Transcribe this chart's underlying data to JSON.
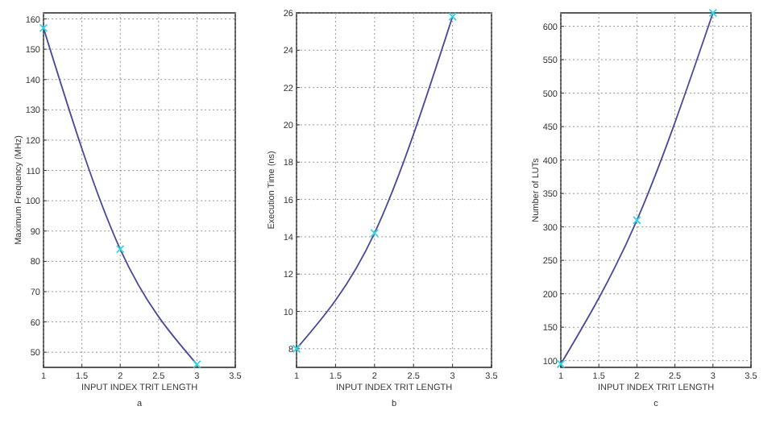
{
  "chart_data": [
    {
      "type": "line",
      "xlabel": "INPUT INDEX TRIT LENGTH",
      "ylabel": "Maximum Frequency (MHz)",
      "annotations": [
        "a"
      ],
      "x": [
        1,
        2,
        3
      ],
      "series": [
        {
          "color": "#4a4a9c",
          "values": [
            157,
            84,
            46
          ]
        }
      ],
      "xlim": [
        1,
        3.5
      ],
      "xticks": [
        1,
        1.5,
        2,
        2.5,
        3,
        3.5
      ],
      "ylim": [
        45,
        162
      ],
      "yticks": [
        50,
        60,
        70,
        80,
        90,
        100,
        110,
        120,
        130,
        140,
        150,
        160
      ],
      "grid": true,
      "marker": "cross",
      "line_style": "solid"
    },
    {
      "type": "line",
      "xlabel": "INPUT INDEX TRIT LENGTH",
      "ylabel": "Execution Time (ns)",
      "annotations": [
        "b"
      ],
      "x": [
        1,
        2,
        3
      ],
      "series": [
        {
          "color": "#4a4a9c",
          "values": [
            8,
            14.2,
            25.8
          ]
        }
      ],
      "xlim": [
        1,
        3.5
      ],
      "xticks": [
        1,
        1.5,
        2,
        2.5,
        3,
        3.5
      ],
      "ylim": [
        7,
        26
      ],
      "yticks": [
        8,
        10,
        12,
        14,
        16,
        18,
        20,
        22,
        24,
        26
      ],
      "grid": true,
      "marker": "cross",
      "line_style": "solid"
    },
    {
      "type": "line",
      "xlabel": "INPUT INDEX TRIT LENGTH",
      "ylabel": "Number of LUTs",
      "annotations": [
        "c"
      ],
      "x": [
        1,
        2,
        3
      ],
      "series": [
        {
          "color": "#4a4a9c",
          "values": [
            95,
            310,
            620
          ]
        }
      ],
      "xlim": [
        1,
        3.5
      ],
      "xticks": [
        1,
        1.5,
        2,
        2.5,
        3,
        3.5
      ],
      "ylim": [
        90,
        620
      ],
      "yticks": [
        100,
        150,
        200,
        250,
        300,
        350,
        400,
        450,
        500,
        550,
        600
      ],
      "grid": true,
      "marker": "cross",
      "line_style": "solid"
    }
  ]
}
